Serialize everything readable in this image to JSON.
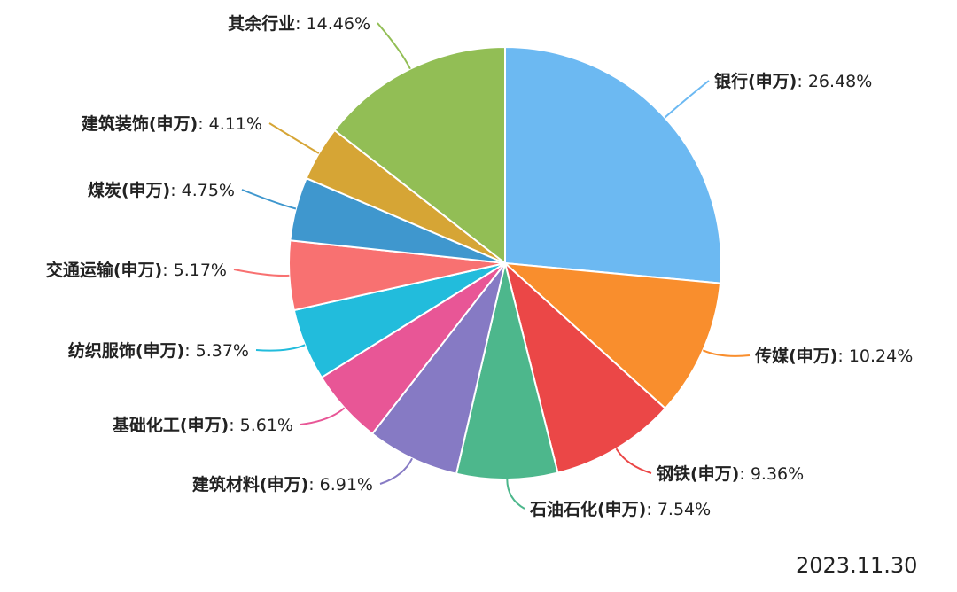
{
  "chart_data": {
    "type": "pie",
    "slices": [
      {
        "name": "银行(申万)",
        "value": 26.48,
        "label": "26.48%",
        "color": "#6CB9F2"
      },
      {
        "name": "传媒(申万)",
        "value": 10.24,
        "label": "10.24%",
        "color": "#F98E2D"
      },
      {
        "name": "钢铁(申万)",
        "value": 9.36,
        "label": "9.36%",
        "color": "#EB4747"
      },
      {
        "name": "石油石化(申万)",
        "value": 7.54,
        "label": "7.54%",
        "color": "#4DB78C"
      },
      {
        "name": "建筑材料(申万)",
        "value": 6.91,
        "label": "6.91%",
        "color": "#867AC4"
      },
      {
        "name": "基础化工(申万)",
        "value": 5.61,
        "label": "5.61%",
        "color": "#E85696"
      },
      {
        "name": "纺织服饰(申万)",
        "value": 5.37,
        "label": "5.37%",
        "color": "#22BCDC"
      },
      {
        "name": "交通运输(申万)",
        "value": 5.17,
        "label": "5.17%",
        "color": "#F87171"
      },
      {
        "name": "煤炭(申万)",
        "value": 4.75,
        "label": "4.75%",
        "color": "#3F97CE"
      },
      {
        "name": "建筑装饰(申万)",
        "value": 4.11,
        "label": "4.11%",
        "color": "#D6A535"
      },
      {
        "name": "其余行业",
        "value": 14.46,
        "label": "14.46%",
        "color": "#92BE55"
      }
    ]
  },
  "date": "2023.11.30"
}
